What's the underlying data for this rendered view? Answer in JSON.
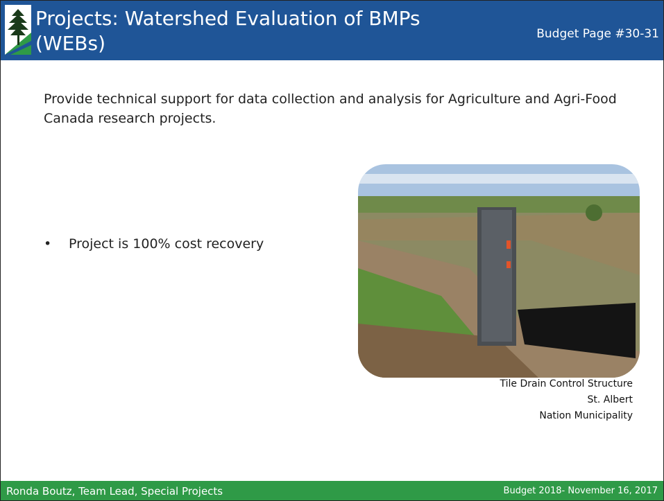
{
  "header": {
    "title": "Projects: Watershed Evaluation of BMPs (WEBs)",
    "budget_page": "Budget Page #30-31"
  },
  "body": {
    "paragraph": "Provide technical support for data collection and analysis for Agriculture and Agri-Food Canada research projects.",
    "bullets": [
      "Project is 100% cost recovery"
    ]
  },
  "image": {
    "caption": [
      "Tile Drain Control Structure",
      "St. Albert",
      "Nation Municipality"
    ]
  },
  "footer": {
    "left": "Ronda Boutz, Team Lead, Special Projects",
    "right": "Budget 2018- November 16, 2017"
  }
}
